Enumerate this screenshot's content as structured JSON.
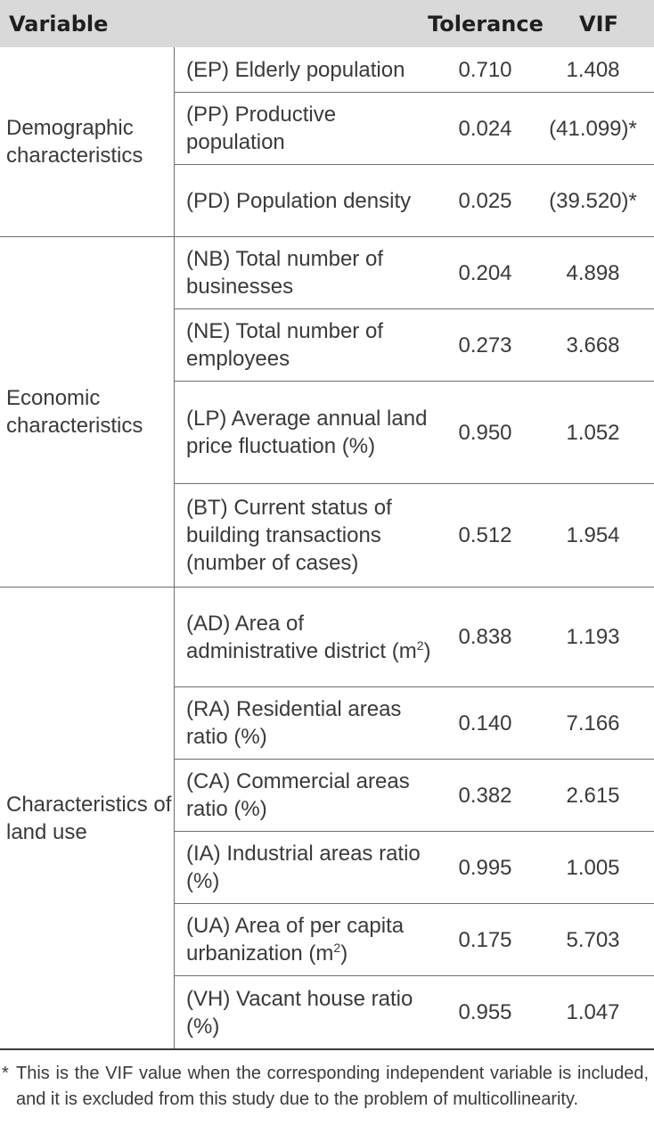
{
  "header": {
    "variable": "Variable",
    "tolerance": "Tolerance",
    "vif": "VIF"
  },
  "groups": [
    {
      "label": "Demographic characteristics",
      "rows": [
        {
          "name": "(EP) Elderly population",
          "tolerance": "0.710",
          "vif": "1.408"
        },
        {
          "name": "(PP) Productive population",
          "tolerance": "0.024",
          "vif": "(41.099)*"
        },
        {
          "name": "(PD) Population density",
          "tolerance": "0.025",
          "vif": "(39.520)*"
        }
      ]
    },
    {
      "label": "Economic characteristics",
      "rows": [
        {
          "name": "(NB) Total number of businesses",
          "tolerance": "0.204",
          "vif": "4.898"
        },
        {
          "name": "(NE) Total number of employees",
          "tolerance": "0.273",
          "vif": "3.668"
        },
        {
          "name": "(LP) Average annual land price fluctuation (%)",
          "tolerance": "0.950",
          "vif": "1.052"
        },
        {
          "name": "(BT) Current status of building transactions (number of cases)",
          "tolerance": "0.512",
          "vif": "1.954"
        }
      ]
    },
    {
      "label": "Characteristics of land use",
      "rows": [
        {
          "name": "(AD) Area of administrative district (m",
          "name_sup": "2",
          "name_suffix": ")",
          "tolerance": "0.838",
          "vif": "1.193"
        },
        {
          "name": "(RA) Residential areas ratio (%)",
          "tolerance": "0.140",
          "vif": "7.166"
        },
        {
          "name": "(CA) Commercial areas ratio (%)",
          "tolerance": "0.382",
          "vif": "2.615"
        },
        {
          "name": "(IA) Industrial areas ratio (%)",
          "tolerance": "0.995",
          "vif": "1.005"
        },
        {
          "name": "(UA) Area of per capita urbanization (m",
          "name_sup": "2",
          "name_suffix": ")",
          "tolerance": "0.175",
          "vif": "5.703"
        },
        {
          "name": "(VH) Vacant house ratio (%)",
          "tolerance": "0.955",
          "vif": "1.047"
        }
      ]
    }
  ],
  "footnote": {
    "mark": "*",
    "text": "This is the VIF value when the corresponding independent variable is included, and it is excluded from this study due to the problem of multicollinearity."
  }
}
